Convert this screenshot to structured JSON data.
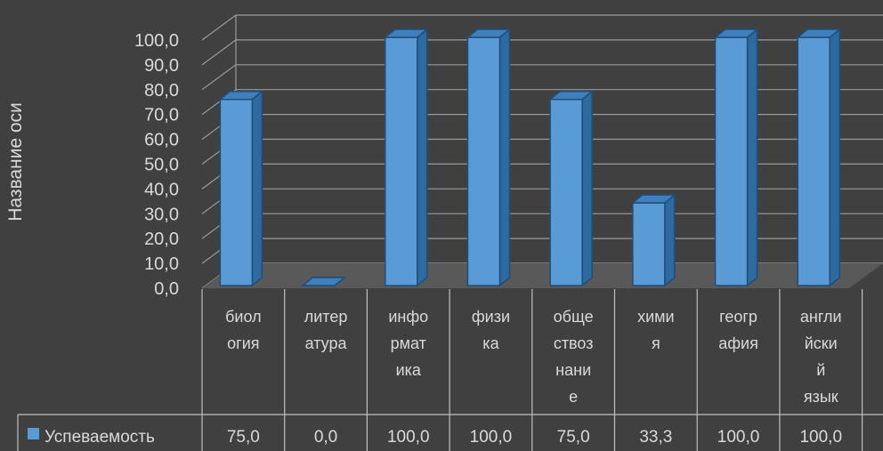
{
  "chart_data": {
    "type": "bar",
    "style": "3d-clustered-column-with-data-table",
    "ylabel": "Название оси",
    "ylim": [
      0,
      100
    ],
    "ytick_step": 10,
    "ytick_labels": [
      "0,0",
      "10,0",
      "20,0",
      "30,0",
      "40,0",
      "50,0",
      "60,0",
      "70,0",
      "80,0",
      "90,0",
      "100,0"
    ],
    "grid": true,
    "legend": "data-table-left",
    "categories": [
      "биология",
      "литература",
      "информатика",
      "физика",
      "обществознание",
      "химия",
      "география",
      "английский язык"
    ],
    "category_labels_wrapped": [
      [
        "биол",
        "огия"
      ],
      [
        "литер",
        "атура"
      ],
      [
        "инфо",
        "рмат",
        "ика"
      ],
      [
        "физи",
        "ка"
      ],
      [
        "обще",
        "ствоз",
        "нани",
        "е"
      ],
      [
        "хими",
        "я"
      ],
      [
        "геогр",
        "афия"
      ],
      [
        "англи",
        "йски",
        "й",
        "язык"
      ]
    ],
    "series": [
      {
        "name": "Успеваемость",
        "values": [
          75.0,
          0.0,
          100.0,
          100.0,
          75.0,
          33.3,
          100.0,
          100.0
        ],
        "value_labels": [
          "75,0",
          "0,0",
          "100,0",
          "100,0",
          "75,0",
          "33,3",
          "100,0",
          "100,0"
        ],
        "color": "#5b9bd5"
      }
    ],
    "colors": {
      "background": "#404040",
      "grid": "#9a9a9a",
      "bar_front": "#5b9bd5",
      "bar_side": "#2e6aa0",
      "bar_top": "#3f7fbd",
      "bar_edge": "#1f4e79",
      "floor": "#595959",
      "table_lines": "#bfbfbf",
      "text": "#d9d9d9"
    }
  }
}
